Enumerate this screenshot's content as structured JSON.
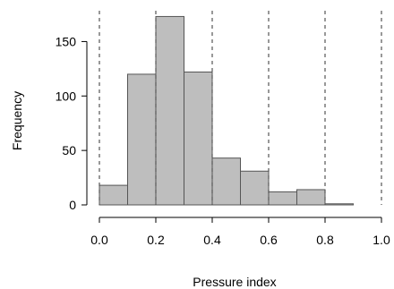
{
  "chart_data": {
    "type": "bar",
    "subtype": "histogram",
    "bin_edges": [
      0.0,
      0.1,
      0.2,
      0.3,
      0.4,
      0.5,
      0.6,
      0.7,
      0.8,
      0.9
    ],
    "values": [
      18,
      120,
      173,
      122,
      43,
      31,
      12,
      14,
      1
    ],
    "title": "",
    "xlabel": "Pressure index",
    "ylabel": "Frequency",
    "xlim": [
      0.0,
      1.0
    ],
    "ylim": [
      0,
      175
    ],
    "x_ticks": [
      0.0,
      0.2,
      0.4,
      0.6,
      0.8,
      1.0
    ],
    "x_tick_labels": [
      "0.0",
      "0.2",
      "0.4",
      "0.6",
      "0.8",
      "1.0"
    ],
    "y_ticks": [
      0,
      50,
      100,
      150
    ],
    "y_tick_labels": [
      "0",
      "50",
      "100",
      "150"
    ],
    "vertical_reference_lines": [
      0.0,
      0.2,
      0.4,
      0.6,
      0.8,
      1.0
    ],
    "grid": false,
    "colors": {
      "bar_fill": "#bebebe",
      "bar_stroke": "#555555",
      "reference_line": "#555555",
      "axis": "#000000"
    }
  }
}
